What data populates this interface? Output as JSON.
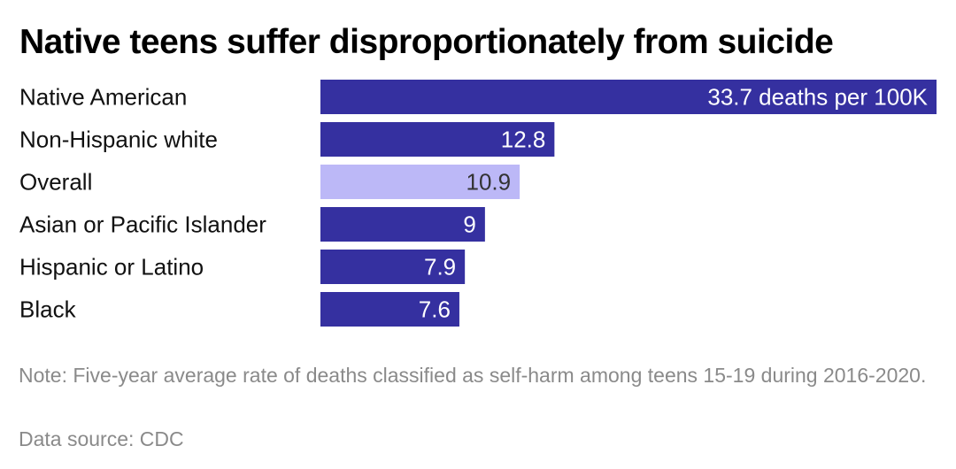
{
  "title": "Native teens suffer disproportionately from suicide",
  "note": "Note: Five-year average rate of deaths classified as self-harm among teens 15-19 during 2016-2020.",
  "source": "Data source: CDC",
  "colors": {
    "bar": "#3530a0",
    "highlight": "#bcb8f7",
    "label_light": "#ffffff",
    "label_dark": "#333333"
  },
  "chart_data": {
    "type": "bar",
    "orientation": "horizontal",
    "categories": [
      "Native American",
      "Non-Hispanic white",
      "Overall",
      "Asian or Pacific Islander",
      "Hispanic or Latino",
      "Black"
    ],
    "values": [
      33.7,
      12.8,
      10.9,
      9,
      7.9,
      7.6
    ],
    "data_labels": [
      "33.7 deaths per 100K",
      "12.8",
      "10.9",
      "9",
      "7.9",
      "7.6"
    ],
    "highlight_category": "Overall",
    "xlim": [
      0,
      33.7
    ],
    "grid": false,
    "legend": "none"
  }
}
